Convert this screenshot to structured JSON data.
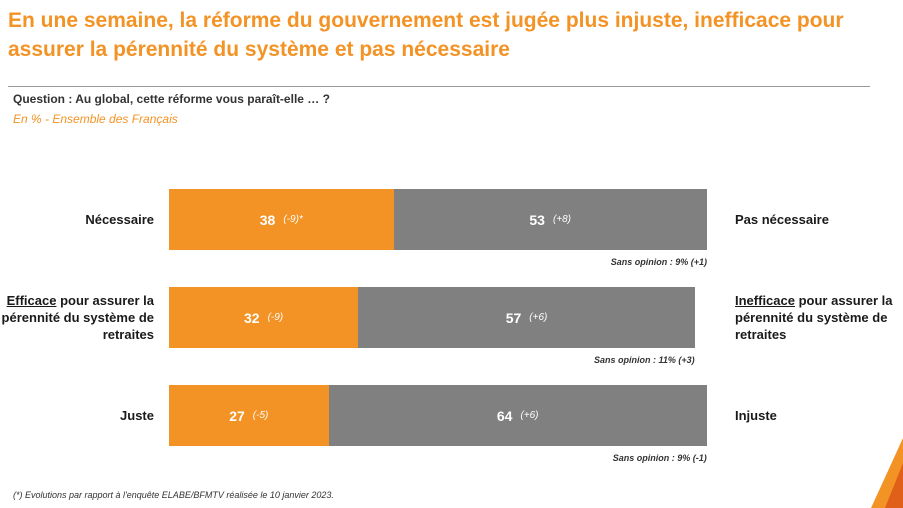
{
  "title": "En une semaine, la réforme du gouvernement est jugée plus injuste, inefficace pour assurer la pérennité du système et pas nécessaire",
  "question": "Question : Au global, cette réforme vous paraît-elle … ?",
  "subtitle": "En % - Ensemble des Français",
  "footnote": "(*) Evolutions par rapport à l'enquête ELABE/BFMTV réalisée le 10 janvier 2023.",
  "colors": {
    "positive": "#f39325",
    "negative": "#808080",
    "accent": "#f39325"
  },
  "chart_data": {
    "type": "bar",
    "orientation": "horizontal-stacked",
    "unit": "%",
    "categories": [
      "Nécessaire / Pas nécessaire",
      "Efficace / Inefficace",
      "Juste / Injuste"
    ],
    "rows": [
      {
        "left_label_prefix": "",
        "left_label_main": "Nécessaire",
        "right_label_prefix": "",
        "right_label_main": "Pas nécessaire",
        "positive": 38,
        "positive_change": "(-9)*",
        "negative": 53,
        "negative_change": "(+8)",
        "sans_opinion": "Sans opinion : 9% (+1)"
      },
      {
        "left_label_prefix": "Efficace",
        "left_label_main": " pour assurer la pérennité du système de retraites",
        "right_label_prefix": "Inefficace",
        "right_label_main": " pour assurer la pérennité du système de retraites",
        "positive": 32,
        "positive_change": "(-9)",
        "negative": 57,
        "negative_change": "(+6)",
        "sans_opinion": "Sans opinion : 11% (+3)"
      },
      {
        "left_label_prefix": "",
        "left_label_main": "Juste",
        "right_label_prefix": "",
        "right_label_main": "Injuste",
        "positive": 27,
        "positive_change": "(-5)",
        "negative": 64,
        "negative_change": "(+6)",
        "sans_opinion": "Sans opinion : 9% (-1)"
      }
    ]
  }
}
